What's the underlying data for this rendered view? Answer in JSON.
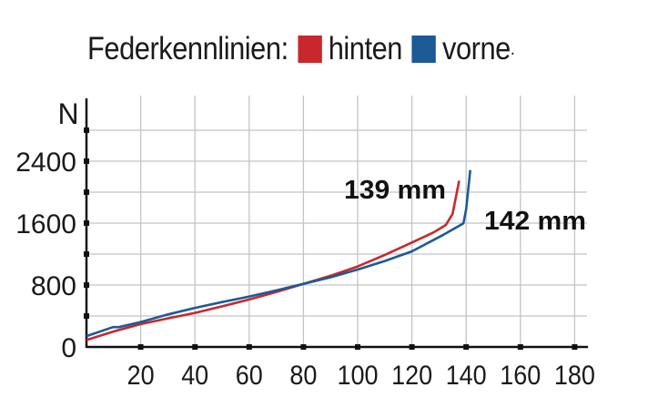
{
  "chart_data": {
    "type": "line",
    "title": "Federkennlinien:",
    "title_suffix": ".",
    "xlabel": "",
    "ylabel": "N",
    "xlim": [
      0,
      180
    ],
    "ylim": [
      0,
      2800
    ],
    "x_ticks": [
      "20",
      "40",
      "60",
      "80",
      "100",
      "120",
      "140",
      "160",
      "180"
    ],
    "y_ticks": [
      "0",
      "800",
      "1600",
      "2400"
    ],
    "grid": true,
    "legend_placement": "top",
    "series": [
      {
        "name": "hinten",
        "color": "#c8282d",
        "end_label": "139 mm",
        "x": [
          0,
          10,
          20,
          30,
          40,
          50,
          60,
          70,
          80,
          90,
          100,
          110,
          120,
          128,
          132.5,
          135,
          137.4
        ],
        "y": [
          90,
          200,
          295,
          370,
          440,
          525,
          613,
          710,
          815,
          920,
          1040,
          1190,
          1350,
          1480,
          1577,
          1720,
          2148
        ]
      },
      {
        "name": "vorne",
        "color": "#1c5a96",
        "end_label": "142 mm",
        "x": [
          0,
          9.8,
          12,
          20,
          30,
          40,
          50,
          60,
          70,
          80,
          90,
          100,
          110,
          120,
          131.6,
          139,
          140,
          141.5
        ],
        "y": [
          140,
          256,
          256,
          322,
          420,
          505,
          580,
          652,
          730,
          815,
          900,
          1000,
          1110,
          1235,
          1450,
          1596,
          1780,
          2285
        ]
      }
    ]
  }
}
